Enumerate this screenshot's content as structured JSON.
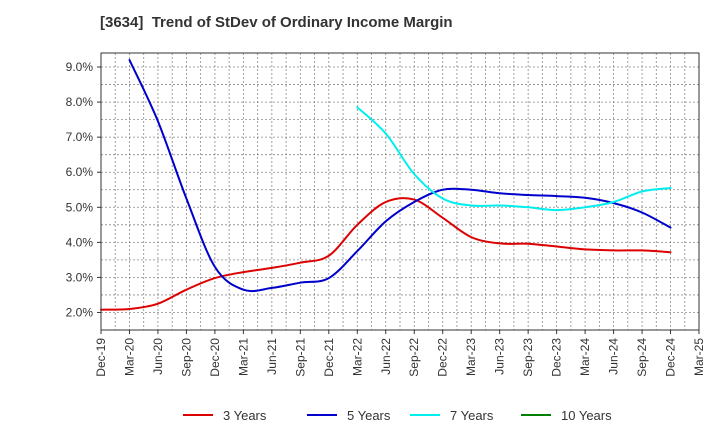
{
  "chart_data": {
    "type": "line",
    "title": "[3634]  Trend of StDev of Ordinary Income Margin",
    "xlabel": "",
    "ylabel": "",
    "x": [
      "Dec-19",
      "Mar-20",
      "Jun-20",
      "Sep-20",
      "Dec-20",
      "Mar-21",
      "Jun-21",
      "Sep-21",
      "Dec-21",
      "Mar-22",
      "Jun-22",
      "Sep-22",
      "Dec-22",
      "Mar-23",
      "Jun-23",
      "Sep-23",
      "Dec-23",
      "Mar-24",
      "Jun-24",
      "Sep-24",
      "Dec-24",
      "Mar-25"
    ],
    "ylim": [
      1.5,
      9.4
    ],
    "yticks": [
      "2.0%",
      "3.0%",
      "4.0%",
      "5.0%",
      "6.0%",
      "7.0%",
      "8.0%",
      "9.0%"
    ],
    "grid": true,
    "legend_position": "bottom",
    "series": [
      {
        "name": "3 Years",
        "color": "#dd0000",
        "values": [
          2.08,
          2.1,
          2.25,
          2.65,
          2.98,
          3.15,
          3.27,
          3.42,
          3.62,
          4.5,
          5.15,
          5.22,
          4.7,
          4.15,
          3.97,
          3.96,
          3.88,
          3.8,
          3.77,
          3.77,
          3.72,
          null
        ]
      },
      {
        "name": "5 Years",
        "color": "#0000cc",
        "values": [
          null,
          9.2,
          7.45,
          5.25,
          3.3,
          2.65,
          2.7,
          2.85,
          2.98,
          3.75,
          4.6,
          5.15,
          5.5,
          5.5,
          5.4,
          5.35,
          5.32,
          5.27,
          5.12,
          4.85,
          4.42,
          null
        ]
      },
      {
        "name": "7 Years",
        "color": "#00eeee",
        "values": [
          null,
          null,
          null,
          null,
          null,
          null,
          null,
          null,
          null,
          7.85,
          7.1,
          5.95,
          5.25,
          5.05,
          5.05,
          5.0,
          4.92,
          5.0,
          5.15,
          5.45,
          5.55,
          null
        ]
      },
      {
        "name": "10 Years",
        "color": "#008000",
        "values": [
          null,
          null,
          null,
          null,
          null,
          null,
          null,
          null,
          null,
          null,
          null,
          null,
          null,
          null,
          null,
          null,
          null,
          null,
          null,
          null,
          null,
          null
        ]
      }
    ]
  }
}
